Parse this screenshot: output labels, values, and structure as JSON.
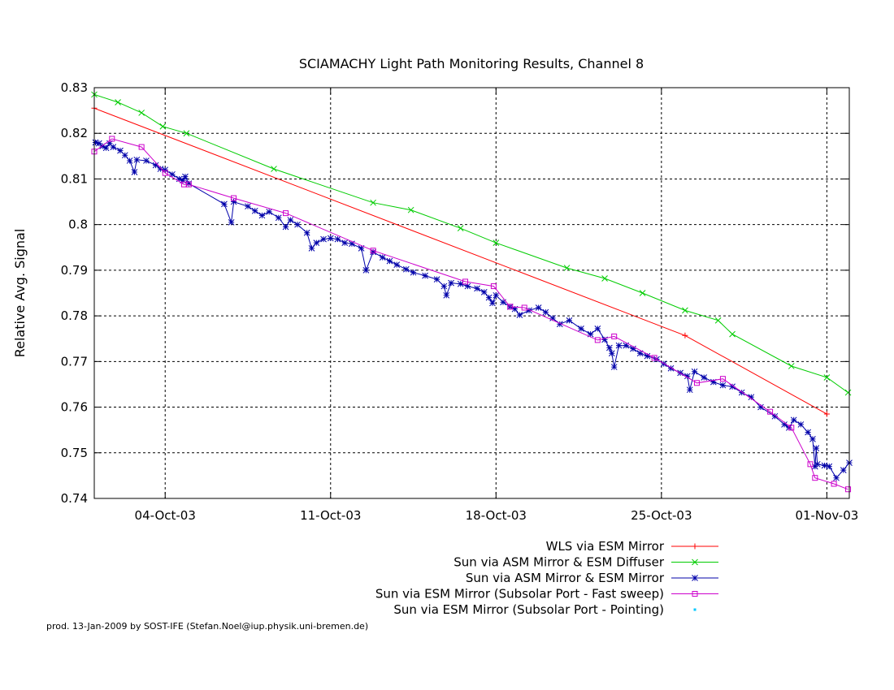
{
  "chart_data": {
    "type": "line",
    "title": "SCIAMACHY Light Path Monitoring Results, Channel 8",
    "ylabel": "Relative Avg. Signal",
    "xlabel": "",
    "x_unit": "date",
    "xlim": [
      "2003-10-01",
      "2003-11-01"
    ],
    "ylim": [
      0.74,
      0.83
    ],
    "x_ticks": [
      "04-Oct-03",
      "11-Oct-03",
      "18-Oct-03",
      "25-Oct-03",
      "01-Nov-03"
    ],
    "y_ticks": [
      "0.74",
      "0.75",
      "0.76",
      "0.77",
      "0.78",
      "0.79",
      "0.8",
      "0.81",
      "0.82",
      "0.83"
    ],
    "grid": true,
    "legend_position": "bottom-right-outside",
    "series": [
      {
        "name": "WLS via ESM Mirror",
        "color": "#ff0000",
        "marker": "plus",
        "points": [
          [
            "2003-10-01",
            0.8255
          ],
          [
            "2003-10-26",
            0.7757
          ],
          [
            "2003-11-01",
            0.7585
          ]
        ]
      },
      {
        "name": "Sun via ASM Mirror & ESM Diffuser",
        "color": "#00cc00",
        "marker": "x",
        "points": [
          [
            "2003-10-01",
            0.8285
          ],
          [
            "2003-10-02",
            0.8268
          ],
          [
            "2003-10-03",
            0.8245
          ],
          [
            "2003-10-03.9",
            0.8215
          ],
          [
            "2003-10-04.9",
            0.82
          ],
          [
            "2003-10-08.6",
            0.8122
          ],
          [
            "2003-10-12.8",
            0.8048
          ],
          [
            "2003-10-14.4",
            0.8032
          ],
          [
            "2003-10-16.5",
            0.7992
          ],
          [
            "2003-10-18",
            0.796
          ],
          [
            "2003-10-21",
            0.7905
          ],
          [
            "2003-10-22.6",
            0.7882
          ],
          [
            "2003-10-24.2",
            0.785
          ],
          [
            "2003-10-26",
            0.7812
          ],
          [
            "2003-10-27.4",
            0.779
          ],
          [
            "2003-10-28",
            0.776
          ],
          [
            "2003-10-30.5",
            0.769
          ],
          [
            "2003-11-01",
            0.7665
          ],
          [
            "2003-11-01.9",
            0.7632
          ]
        ]
      },
      {
        "name": "Sun via ASM Mirror & ESM Mirror",
        "color": "#0000aa",
        "marker": "star",
        "points": [
          [
            "2003-10-01.05",
            0.818
          ],
          [
            "2003-10-01.2",
            0.8178
          ],
          [
            "2003-10-01.35",
            0.8172
          ],
          [
            "2003-10-01.5",
            0.8168
          ],
          [
            "2003-10-01.65",
            0.8178
          ],
          [
            "2003-10-01.8",
            0.817
          ],
          [
            "2003-10-02.1",
            0.8162
          ],
          [
            "2003-10-02.3",
            0.8152
          ],
          [
            "2003-10-02.5",
            0.814
          ],
          [
            "2003-10-02.7",
            0.8115
          ],
          [
            "2003-10-02.8",
            0.8142
          ],
          [
            "2003-10-03.2",
            0.814
          ],
          [
            "2003-10-03.6",
            0.813
          ],
          [
            "2003-10-03.8",
            0.8122
          ],
          [
            "2003-10-04",
            0.812
          ],
          [
            "2003-10-04.3",
            0.811
          ],
          [
            "2003-10-04.6",
            0.81
          ],
          [
            "2003-10-04.75",
            0.8097
          ],
          [
            "2003-10-04.85",
            0.8105
          ],
          [
            "2003-10-05",
            0.809
          ],
          [
            "2003-10-06.5",
            0.8045
          ],
          [
            "2003-10-06.8",
            0.8005
          ],
          [
            "2003-10-06.9",
            0.805
          ],
          [
            "2003-10-07.5",
            0.804
          ],
          [
            "2003-10-07.8",
            0.803
          ],
          [
            "2003-10-08.1",
            0.802
          ],
          [
            "2003-10-08.4",
            0.8028
          ],
          [
            "2003-10-08.8",
            0.8015
          ],
          [
            "2003-10-09.1",
            0.7995
          ],
          [
            "2003-10-09.3",
            0.801
          ],
          [
            "2003-10-09.6",
            0.8
          ],
          [
            "2003-10-10",
            0.7982
          ],
          [
            "2003-10-10.2",
            0.7948
          ],
          [
            "2003-10-10.4",
            0.796
          ],
          [
            "2003-10-10.7",
            0.7968
          ],
          [
            "2003-10-11",
            0.797
          ],
          [
            "2003-10-11.3",
            0.7968
          ],
          [
            "2003-10-11.6",
            0.796
          ],
          [
            "2003-10-11.9",
            0.7958
          ],
          [
            "2003-10-12.3",
            0.7948
          ],
          [
            "2003-10-12.5",
            0.79
          ],
          [
            "2003-10-12.8",
            0.794
          ],
          [
            "2003-10-13.2",
            0.7928
          ],
          [
            "2003-10-13.5",
            0.792
          ],
          [
            "2003-10-13.8",
            0.7912
          ],
          [
            "2003-10-14.2",
            0.7902
          ],
          [
            "2003-10-14.5",
            0.7895
          ],
          [
            "2003-10-15",
            0.7888
          ],
          [
            "2003-10-15.5",
            0.788
          ],
          [
            "2003-10-15.8",
            0.7865
          ],
          [
            "2003-10-15.9",
            0.7845
          ],
          [
            "2003-10-16.1",
            0.7872
          ],
          [
            "2003-10-16.5",
            0.787
          ],
          [
            "2003-10-16.8",
            0.7865
          ],
          [
            "2003-10-17.2",
            0.786
          ],
          [
            "2003-10-17.5",
            0.7852
          ],
          [
            "2003-10-17.7",
            0.784
          ],
          [
            "2003-10-17.85",
            0.7828
          ],
          [
            "2003-10-18",
            0.7845
          ],
          [
            "2003-10-18.3",
            0.783
          ],
          [
            "2003-10-18.6",
            0.782
          ],
          [
            "2003-10-18.8",
            0.7815
          ],
          [
            "2003-10-19",
            0.7802
          ],
          [
            "2003-10-19.4",
            0.7812
          ],
          [
            "2003-10-19.8",
            0.7818
          ],
          [
            "2003-10-20.1",
            0.7808
          ],
          [
            "2003-10-20.4",
            0.7795
          ],
          [
            "2003-10-20.7",
            0.7782
          ],
          [
            "2003-10-21.1",
            0.779
          ],
          [
            "2003-10-21.6",
            0.7772
          ],
          [
            "2003-10-22",
            0.776
          ],
          [
            "2003-10-22.3",
            0.7772
          ],
          [
            "2003-10-22.6",
            0.7748
          ],
          [
            "2003-10-22.8",
            0.773
          ],
          [
            "2003-10-22.9",
            0.7718
          ],
          [
            "2003-10-23",
            0.7688
          ],
          [
            "2003-10-23.2",
            0.7735
          ],
          [
            "2003-10-23.5",
            0.7735
          ],
          [
            "2003-10-23.8",
            0.7728
          ],
          [
            "2003-10-24.1",
            0.7718
          ],
          [
            "2003-10-24.4",
            0.7712
          ],
          [
            "2003-10-24.8",
            0.7705
          ],
          [
            "2003-10-25.1",
            0.7695
          ],
          [
            "2003-10-25.4",
            0.7685
          ],
          [
            "2003-10-25.8",
            0.7675
          ],
          [
            "2003-10-26.1",
            0.7668
          ],
          [
            "2003-10-26.2",
            0.7638
          ],
          [
            "2003-10-26.4",
            0.7678
          ],
          [
            "2003-10-26.8",
            0.7665
          ],
          [
            "2003-10-27.2",
            0.7655
          ],
          [
            "2003-10-27.6",
            0.7648
          ],
          [
            "2003-10-28",
            0.7645
          ],
          [
            "2003-10-28.4",
            0.7632
          ],
          [
            "2003-10-28.8",
            0.7622
          ],
          [
            "2003-10-29.2",
            0.76
          ],
          [
            "2003-10-29.8",
            0.758
          ],
          [
            "2003-10-30.2",
            0.7562
          ],
          [
            "2003-10-30.4",
            0.7555
          ],
          [
            "2003-10-30.6",
            0.7572
          ],
          [
            "2003-10-30.9",
            0.7562
          ],
          [
            "2003-10-31.2",
            0.7545
          ],
          [
            "2003-10-31.4",
            0.753
          ],
          [
            "2003-10-31.5",
            0.747
          ],
          [
            "2003-10-31.55",
            0.751
          ],
          [
            "2003-10-31.6",
            0.7475
          ],
          [
            "2003-10-31.9",
            0.7472
          ],
          [
            "2003-11-01.1",
            0.747
          ],
          [
            "2003-11-01.4",
            0.7445
          ],
          [
            "2003-11-01.7",
            0.7462
          ],
          [
            "2003-11-01.95",
            0.7478
          ]
        ]
      },
      {
        "name": "Sun via ESM Mirror (Subsolar Port - Fast sweep)",
        "color": "#cc00cc",
        "marker": "square",
        "points": [
          [
            "2003-10-01",
            0.816
          ],
          [
            "2003-10-01.75",
            0.8188
          ],
          [
            "2003-10-03",
            0.817
          ],
          [
            "2003-10-04",
            0.8113
          ],
          [
            "2003-10-04.8",
            0.8088
          ],
          [
            "2003-10-05",
            0.8088
          ],
          [
            "2003-10-06.9",
            0.8058
          ],
          [
            "2003-10-09.1",
            0.8025
          ],
          [
            "2003-10-12.8",
            0.7943
          ],
          [
            "2003-10-16.7",
            0.7875
          ],
          [
            "2003-10-17.9",
            0.7865
          ],
          [
            "2003-10-18.6",
            0.782
          ],
          [
            "2003-10-19.2",
            0.7818
          ],
          [
            "2003-10-22.3",
            0.7747
          ],
          [
            "2003-10-23",
            0.7755
          ],
          [
            "2003-10-24.7",
            0.7708
          ],
          [
            "2003-10-26.5",
            0.7653
          ],
          [
            "2003-10-27.6",
            0.7662
          ],
          [
            "2003-10-29.6",
            0.759
          ],
          [
            "2003-10-30.5",
            0.7555
          ],
          [
            "2003-10-31.3",
            0.7475
          ],
          [
            "2003-10-31.5",
            0.7445
          ],
          [
            "2003-11-01.3",
            0.7432
          ],
          [
            "2003-11-01.9",
            0.742
          ]
        ]
      },
      {
        "name": "Sun via ESM Mirror (Subsolar Port - Pointing)",
        "color": "#00c8ff",
        "marker": "dot",
        "points": []
      }
    ],
    "footer": "prod. 13-Jan-2009 by SOST-IFE (Stefan.Noel@iup.physik.uni-bremen.de)"
  }
}
